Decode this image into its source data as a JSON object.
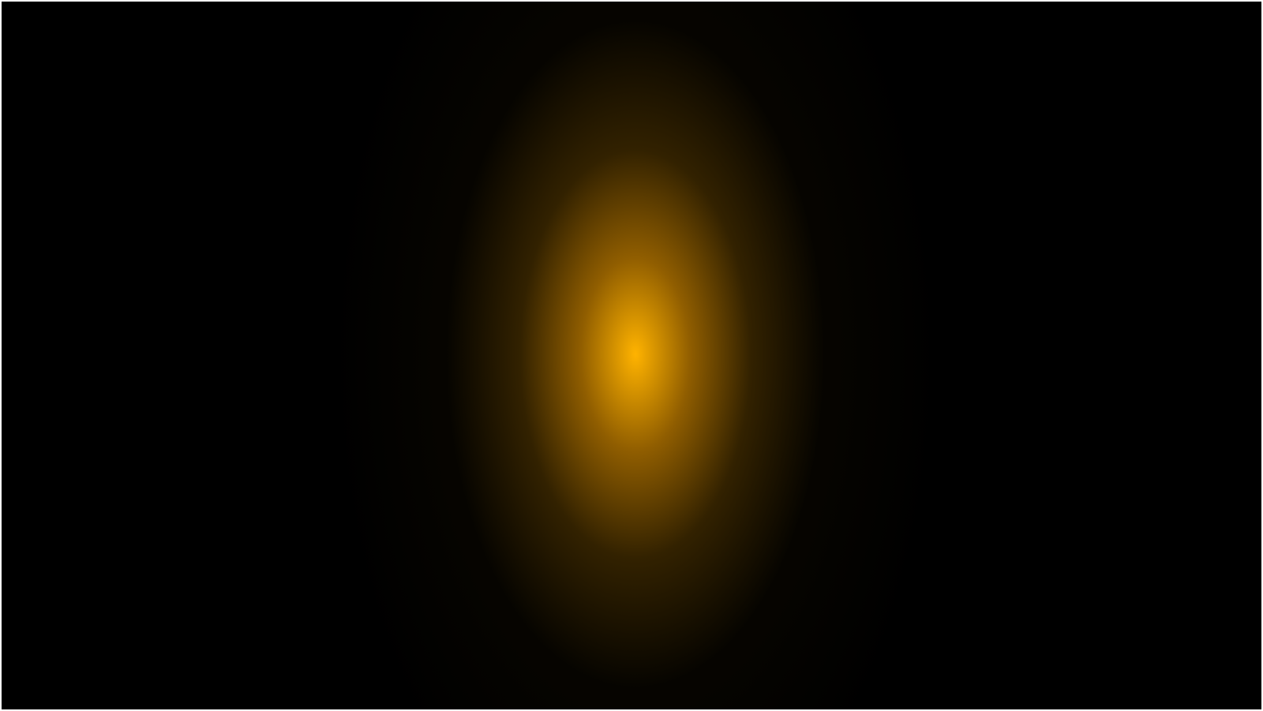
{
  "colors": {
    "background": "#000000",
    "frame": "#ffffff",
    "glow_core": "#ffb300",
    "glow_mid": "rgba(200, 130, 0, 0.72)",
    "glow_soft": "rgba(120, 80, 0, 0.42)",
    "glow_faint": "rgba(40, 28, 0, 0.16)"
  }
}
